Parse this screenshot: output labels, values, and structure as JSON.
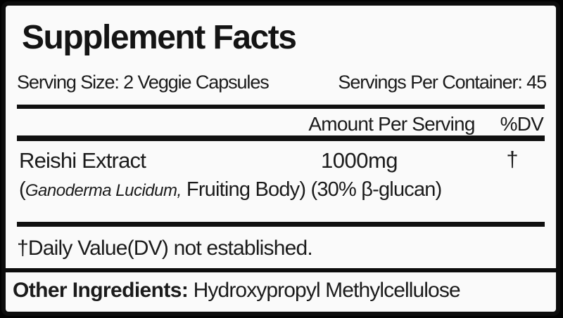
{
  "label": {
    "title": "Supplement Facts",
    "serving_size": "Serving Size: 2 Veggie Capsules",
    "servings_per_container": "Servings Per Container: 45",
    "header": {
      "amount": "Amount Per Serving",
      "dv": "%DV"
    },
    "rows": [
      {
        "name": "Reishi Extract",
        "amount": "1000mg",
        "dv": "†",
        "detail_prefix": "(",
        "detail_botanical": "Ganoderma Lucidum,",
        "detail_rest": " Fruiting Body) (30% β-glucan)"
      }
    ],
    "footnote": "†Daily Value(DV) not established.",
    "other_ingredients": {
      "label": "Other Ingredients:",
      "value": " Hydroxypropyl Methylcellulose"
    },
    "colors": {
      "background": "#000000",
      "panel": "#fafafa",
      "ink": "#1b1b1b",
      "rule": "#101010"
    }
  }
}
